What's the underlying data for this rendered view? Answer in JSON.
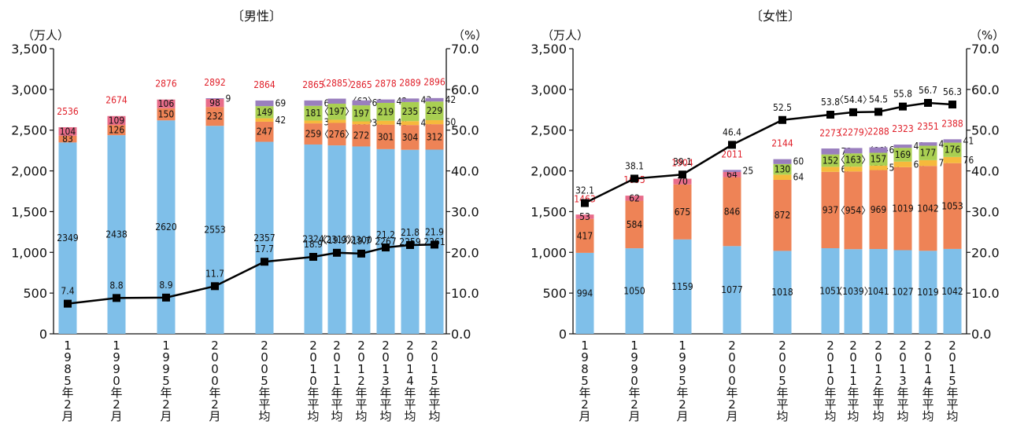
{
  "units": {
    "left": "（万人）",
    "right": "（%）"
  },
  "colors": {
    "regular": "#7fbfe9",
    "part": "#ee8356",
    "arubaito": "#f6b93c",
    "haken": "#a9cf52",
    "keiyaku": "#e86c8a",
    "other": "#9a7fbe",
    "total_label": "#e0202a",
    "line": "#000000"
  },
  "categories": [
    "1985年2月",
    "1990年2月",
    "1995年2月",
    "2000年2月",
    "2005年平均",
    "2010年平均",
    "2011年平均",
    "2012年平均",
    "2013年平均",
    "2014年平均",
    "2015年平均"
  ],
  "yticks_left": [
    "0",
    "500",
    "1,000",
    "1,500",
    "2,000",
    "2,500",
    "3,000",
    "3,500"
  ],
  "yticks_right": [
    "0.0",
    "10.0",
    "20.0",
    "30.0",
    "40.0",
    "50.0",
    "60.0",
    "70.0"
  ],
  "chart_data": [
    {
      "type": "bar",
      "title": "〔男性〕",
      "ylim": [
        0,
        3500
      ],
      "y2lim": [
        0,
        70
      ],
      "categories": [
        "1985年2月",
        "1990年2月",
        "1995年2月",
        "2000年2月",
        "2005年平均",
        "2010年平均",
        "2011年平均",
        "2012年平均",
        "2013年平均",
        "2014年平均",
        "2015年平均"
      ],
      "series": [
        {
          "values": [
            2349,
            2438,
            2620,
            2553,
            2357,
            2324,
            2313,
            2300,
            2267,
            2259,
            2261
          ],
          "labels": [
            "2349",
            "2438",
            "2620",
            "2553",
            "2357",
            "2324",
            "〈2313〉",
            "2300",
            "2267",
            "2259",
            "2261"
          ],
          "color_key": "regular"
        },
        {
          "values": [
            83,
            0,
            0,
            0,
            0,
            0,
            0,
            0,
            0,
            0,
            0
          ],
          "labels": [
            "83",
            "",
            "",
            "",
            "",
            "",
            "",
            "",
            "",
            "",
            ""
          ],
          "color_key": "part"
        },
        {
          "values": [
            0,
            126,
            150,
            232,
            247,
            259,
            276,
            272,
            301,
            304,
            312
          ],
          "labels": [
            "",
            "126",
            "150",
            "232",
            "247",
            "259",
            "〈276〉",
            "272",
            "301",
            "304",
            "312"
          ],
          "color_key": "part"
        },
        {
          "values": [
            0,
            0,
            0,
            0,
            42,
            35,
            39,
            36,
            48,
            48,
            50
          ],
          "labels": [
            "",
            "",
            "",
            "",
            "42",
            "35",
            "〈39〉",
            "36",
            "48",
            "48",
            "50"
          ],
          "color_key": "arubaito",
          "label_side": "right"
        },
        {
          "values": [
            0,
            0,
            0,
            0,
            149,
            181,
            197,
            197,
            219,
            235,
            229
          ],
          "labels": [
            "",
            "",
            "",
            "",
            "149",
            "181",
            "〈197〉",
            "197",
            "219",
            "235",
            "229"
          ],
          "color_key": "haken"
        },
        {
          "values": [
            104,
            109,
            106,
            98,
            0,
            0,
            0,
            0,
            0,
            0,
            0
          ],
          "labels": [
            "104",
            "109",
            "106",
            "98",
            "",
            "",
            "",
            "",
            "",
            "",
            ""
          ],
          "color_key": "keiyaku"
        },
        {
          "values": [
            0,
            0,
            0,
            9,
            69,
            66,
            62,
            61,
            42,
            43,
            42
          ],
          "labels": [
            "",
            "",
            "",
            "9",
            "69",
            "66",
            "〈62〉",
            "61",
            "42",
            "43",
            "42"
          ],
          "color_key": "other"
        }
      ],
      "totals": [
        2536,
        2674,
        2876,
        2892,
        2864,
        2865,
        2885,
        2865,
        2878,
        2889,
        2896
      ],
      "total_labels": [
        "2536",
        "2674",
        "2876",
        "2892",
        "2864",
        "2865",
        "〈2885〉",
        "2865",
        "2878",
        "2889",
        "2896"
      ],
      "line": {
        "values": [
          7.4,
          8.8,
          8.9,
          11.7,
          17.7,
          18.9,
          19.9,
          19.7,
          21.2,
          21.8,
          21.9
        ],
        "labels": [
          "7.4",
          "8.8",
          "8.9",
          "11.7",
          "17.7",
          "18.9",
          "〈19.9〉",
          "19.7",
          "21.2",
          "21.8",
          "21.9"
        ]
      }
    },
    {
      "type": "bar",
      "title": "〔女性〕",
      "ylim": [
        0,
        3500
      ],
      "y2lim": [
        0,
        70
      ],
      "categories": [
        "1985年2月",
        "1990年2月",
        "1995年2月",
        "2000年2月",
        "2005年平均",
        "2010年平均",
        "2011年平均",
        "2012年平均",
        "2013年平均",
        "2014年平均",
        "2015年平均"
      ],
      "series": [
        {
          "values": [
            994,
            1050,
            1159,
            1077,
            1018,
            1051,
            1039,
            1041,
            1027,
            1019,
            1042
          ],
          "labels": [
            "994",
            "1050",
            "1159",
            "1077",
            "1018",
            "1051",
            "〈1039〉",
            "1041",
            "1027",
            "1019",
            "1042"
          ],
          "color_key": "regular"
        },
        {
          "values": [
            417,
            584,
            675,
            846,
            872,
            937,
            954,
            969,
            1019,
            1042,
            1053
          ],
          "labels": [
            "417",
            "584",
            "675",
            "846",
            "872",
            "937",
            "〈954〉",
            "969",
            "1019",
            "1042",
            "1053"
          ],
          "color_key": "part"
        },
        {
          "values": [
            0,
            0,
            0,
            0,
            64,
            62,
            59,
            55,
            68,
            71,
            76
          ],
          "labels": [
            "",
            "",
            "",
            "",
            "64",
            "62",
            "〈59〉",
            "55",
            "68",
            "71",
            "76"
          ],
          "color_key": "arubaito"
        },
        {
          "values": [
            0,
            0,
            0,
            0,
            130,
            152,
            163,
            157,
            169,
            177,
            176
          ],
          "labels": [
            "",
            "",
            "",
            "",
            "130",
            "152",
            "〈163〉",
            "157",
            "169",
            "177",
            "176"
          ],
          "color_key": "haken"
        },
        {
          "values": [
            53,
            62,
            70,
            64,
            0,
            0,
            0,
            0,
            0,
            0,
            0
          ],
          "labels": [
            "53",
            "62",
            "70",
            "64",
            "",
            "",
            "",
            "",
            "",
            "",
            ""
          ],
          "color_key": "keiyaku"
        },
        {
          "values": [
            0,
            0,
            0,
            25,
            60,
            73,
            66,
            67,
            40,
            42,
            41
          ],
          "labels": [
            "",
            "",
            "",
            "25",
            "60",
            "73",
            "〈66〉",
            "67",
            "40",
            "42",
            "41"
          ],
          "color_key": "other"
        }
      ],
      "totals": [
        1463,
        1695,
        1904,
        2011,
        2144,
        2273,
        2279,
        2288,
        2323,
        2351,
        2388
      ],
      "total_labels": [
        "1463",
        "1695",
        "1904",
        "2011",
        "2144",
        "2273",
        "〈2279〉",
        "2288",
        "2323",
        "2351",
        "2388"
      ],
      "line": {
        "values": [
          32.1,
          38.1,
          39.1,
          46.4,
          52.5,
          53.8,
          54.4,
          54.5,
          55.8,
          56.7,
          56.3
        ],
        "labels": [
          "32.1",
          "38.1",
          "39.1",
          "46.4",
          "52.5",
          "53.8",
          "〈54.4〉",
          "54.5",
          "55.8",
          "56.7",
          "56.3"
        ]
      }
    }
  ]
}
